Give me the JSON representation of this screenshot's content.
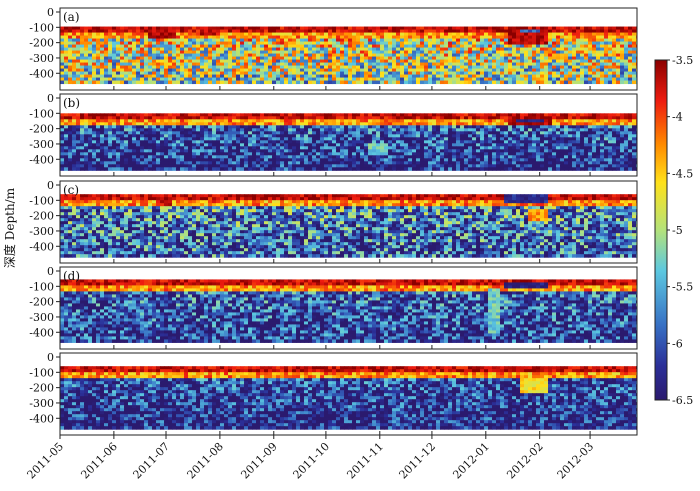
{
  "chart_data": {
    "type": "heatmap",
    "ylabel": "深度 Depth/m",
    "y_ticks": [
      "0",
      "-100",
      "-200",
      "-300",
      "-400"
    ],
    "ylim": [
      -470,
      0
    ],
    "x_ticks": [
      "2011-05",
      "2011-06",
      "2011-07",
      "2011-08",
      "2011-09",
      "2011-10",
      "2011-11",
      "2011-12",
      "2012-01",
      "2012-02",
      "2012-03"
    ],
    "xlim": [
      "2011-05-01",
      "2012-03-28"
    ],
    "colorbar": {
      "ticks": [
        "-3.5",
        "-4",
        "-4.5",
        "-5",
        "-5.5",
        "-6",
        "-6.5"
      ],
      "range": [
        -6.5,
        -3.5
      ],
      "colormap": "jet"
    },
    "panels": [
      {
        "label": "(a)",
        "surface_depth": -95,
        "mean_level": -4.7,
        "texture_noise": 1.3,
        "depth_decay": 0.45,
        "features": [
          {
            "start": "2011-06-20",
            "end": "2011-07-05",
            "top": -95,
            "bottom": -170,
            "value": -3.6
          },
          {
            "start": "2011-07-20",
            "end": "2011-08-01",
            "top": -95,
            "bottom": -150,
            "value": -3.7
          },
          {
            "start": "2012-01-12",
            "end": "2012-02-05",
            "top": -100,
            "bottom": -200,
            "value": -3.6
          },
          {
            "start": "2012-01-20",
            "end": "2012-02-01",
            "top": -105,
            "bottom": -125,
            "value": -5.9
          }
        ]
      },
      {
        "label": "(b)",
        "surface_depth": -100,
        "mean_level": -5.9,
        "texture_noise": 1.1,
        "depth_decay": 0.5,
        "features": [
          {
            "start": "2012-01-13",
            "end": "2012-02-06",
            "top": -105,
            "bottom": -175,
            "value": -3.6
          },
          {
            "start": "2012-01-18",
            "end": "2012-02-02",
            "top": -120,
            "bottom": -140,
            "value": -6.3
          },
          {
            "start": "2011-10-25",
            "end": "2011-11-05",
            "top": -280,
            "bottom": -370,
            "value": -5.3
          }
        ]
      },
      {
        "label": "(c)",
        "surface_depth": -60,
        "mean_level": -5.6,
        "texture_noise": 1.2,
        "depth_decay": 0.4,
        "features": [
          {
            "start": "2011-06-25",
            "end": "2011-07-03",
            "top": -60,
            "bottom": -120,
            "value": -3.7
          },
          {
            "start": "2011-07-25",
            "end": "2011-08-01",
            "top": -60,
            "bottom": -110,
            "value": -3.8
          },
          {
            "start": "2012-01-10",
            "end": "2012-02-05",
            "top": -60,
            "bottom": -100,
            "value": -6.3
          },
          {
            "start": "2012-01-25",
            "end": "2012-02-05",
            "top": -150,
            "bottom": -220,
            "value": -4.3
          }
        ]
      },
      {
        "label": "(d)",
        "surface_depth": -55,
        "mean_level": -5.9,
        "texture_noise": 1.1,
        "depth_decay": 0.35,
        "features": [
          {
            "start": "2012-01-10",
            "end": "2012-02-05",
            "top": -60,
            "bottom": -100,
            "value": -6.4
          },
          {
            "start": "2012-01-01",
            "end": "2012-01-08",
            "top": -100,
            "bottom": -400,
            "value": -5.3
          }
        ]
      },
      {
        "label": "",
        "surface_depth": -60,
        "mean_level": -6.0,
        "texture_noise": 1.0,
        "depth_decay": 0.35,
        "features": [
          {
            "start": "2012-01-20",
            "end": "2012-02-05",
            "top": -130,
            "bottom": -230,
            "value": -4.6
          }
        ]
      }
    ]
  }
}
